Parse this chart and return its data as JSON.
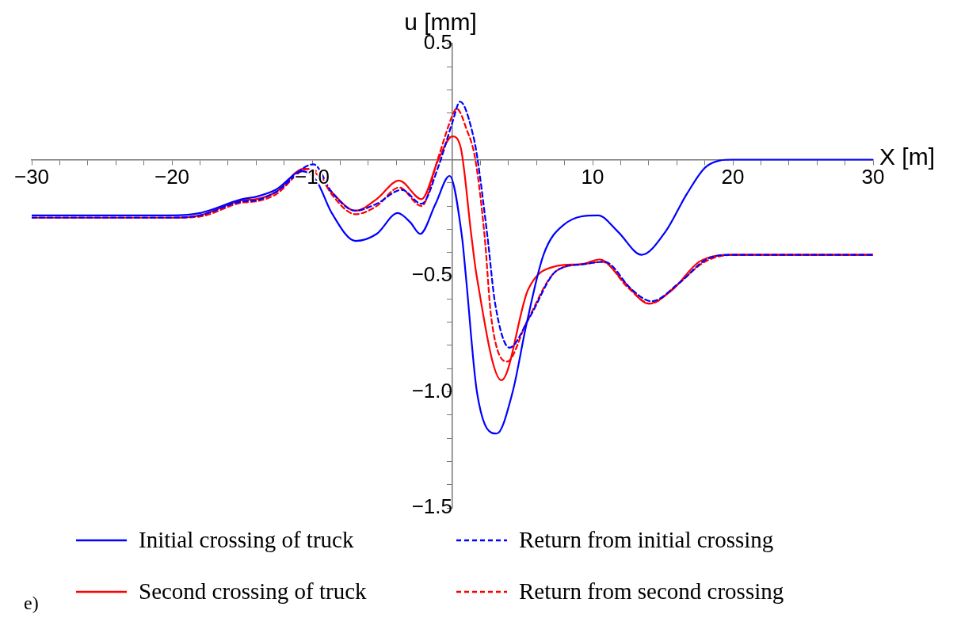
{
  "chart_data": {
    "type": "line",
    "xlabel": "X [m]",
    "ylabel": "u [mm]",
    "xlim": [
      -30,
      30
    ],
    "ylim": [
      -1.5,
      0.5
    ],
    "xticks": [
      {
        "value": -30,
        "label": "−30"
      },
      {
        "value": -28,
        "label": null
      },
      {
        "value": -26,
        "label": null
      },
      {
        "value": -24,
        "label": null
      },
      {
        "value": -22,
        "label": null
      },
      {
        "value": -20,
        "label": "−20"
      },
      {
        "value": -18,
        "label": null
      },
      {
        "value": -16,
        "label": null
      },
      {
        "value": -14,
        "label": null
      },
      {
        "value": -12,
        "label": null
      },
      {
        "value": -10,
        "label": "−10"
      },
      {
        "value": -8,
        "label": null
      },
      {
        "value": -6,
        "label": null
      },
      {
        "value": -4,
        "label": null
      },
      {
        "value": -2,
        "label": null
      },
      {
        "value": 2,
        "label": null
      },
      {
        "value": 4,
        "label": null
      },
      {
        "value": 6,
        "label": null
      },
      {
        "value": 8,
        "label": null
      },
      10,
      {
        "value": 12,
        "label": null
      },
      {
        "value": 14,
        "label": null
      },
      {
        "value": 16,
        "label": null
      },
      {
        "value": 18,
        "label": null
      },
      20,
      {
        "value": 22,
        "label": null
      },
      {
        "value": 24,
        "label": null
      },
      {
        "value": 26,
        "label": null
      },
      {
        "value": 28,
        "label": null
      },
      30
    ],
    "yticks": [
      {
        "value": -1.5,
        "label": "−1.5"
      },
      {
        "value": -1.4,
        "label": null
      },
      {
        "value": -1.3,
        "label": null
      },
      {
        "value": -1.2,
        "label": null
      },
      {
        "value": -1.1,
        "label": null
      },
      {
        "value": -1,
        "label": "−1.0"
      },
      {
        "value": -0.9,
        "label": null
      },
      {
        "value": -0.8,
        "label": null
      },
      {
        "value": -0.7,
        "label": null
      },
      {
        "value": -0.6,
        "label": null
      },
      {
        "value": -0.5,
        "label": "−0.5"
      },
      {
        "value": -0.4,
        "label": null
      },
      {
        "value": -0.3,
        "label": null
      },
      {
        "value": -0.2,
        "label": null
      },
      {
        "value": -0.1,
        "label": null
      },
      {
        "value": 0.1,
        "label": null
      },
      {
        "value": 0.2,
        "label": null
      },
      {
        "value": 0.3,
        "label": null
      },
      {
        "value": 0.4,
        "label": null
      },
      0.5
    ],
    "legend": "bottom",
    "grid": false,
    "marker": "none",
    "annotations": [
      "e)"
    ],
    "series": [
      {
        "name": "Initial crossing of truck",
        "color": "#0000ff",
        "line_style": "solid",
        "x": [
          -30,
          -20,
          -18,
          -15,
          -14,
          -12.6,
          -10.7,
          -9.7,
          -8.6,
          -6.9,
          -5.4,
          -3.9,
          -3,
          -2.3,
          -1.2,
          -0.2,
          0.68,
          0.96,
          1.75,
          3.16,
          4.3,
          5.28,
          6.5,
          7.95,
          10.4,
          11.8,
          13.5,
          15.2,
          16.7,
          18.1,
          20,
          30
        ],
        "values": [
          -0.24,
          -0.24,
          -0.23,
          -0.17,
          -0.16,
          -0.13,
          -0.05,
          -0.09,
          -0.23,
          -0.35,
          -0.32,
          -0.23,
          -0.27,
          -0.32,
          -0.19,
          -0.07,
          -0.33,
          -0.5,
          -1.0,
          -1.18,
          -1.0,
          -0.71,
          -0.41,
          -0.28,
          -0.24,
          -0.31,
          -0.41,
          -0.31,
          -0.15,
          -0.03,
          0,
          0
        ]
      },
      {
        "name": "Return from initial crossing",
        "color": "#0000ff",
        "line_style": "dashed",
        "x": [
          -30,
          -20,
          -18,
          -15,
          -14,
          -12.6,
          -9.9,
          -8.6,
          -6.9,
          -5.4,
          -3.6,
          -2.2,
          -1,
          0,
          0.55,
          1.5,
          1.8,
          2.5,
          3.05,
          4.07,
          5.5,
          7.4,
          9.4,
          10.85,
          12.8,
          14.2,
          16.2,
          18.1,
          20,
          30
        ],
        "values": [
          -0.25,
          -0.25,
          -0.24,
          -0.18,
          -0.175,
          -0.14,
          -0.02,
          -0.14,
          -0.22,
          -0.19,
          -0.13,
          -0.19,
          -0.03,
          0.16,
          0.25,
          0.1,
          0,
          -0.33,
          -0.62,
          -0.81,
          -0.68,
          -0.48,
          -0.45,
          -0.44,
          -0.56,
          -0.61,
          -0.53,
          -0.43,
          -0.41,
          -0.41
        ]
      },
      {
        "name": "Second crossing of truck",
        "color": "#ff0000",
        "line_style": "solid",
        "x": [
          -30,
          -20,
          -18,
          -15,
          -14,
          -12.6,
          -10.6,
          -9.9,
          -8.6,
          -6.9,
          -5.4,
          -3.8,
          -2.2,
          -1,
          0,
          0.6,
          1.36,
          1.73,
          3.5,
          5.4,
          7.3,
          9.2,
          10.5,
          12.3,
          14,
          15.7,
          17.6,
          20,
          30
        ],
        "values": [
          -0.25,
          -0.25,
          -0.24,
          -0.175,
          -0.17,
          -0.14,
          -0.04,
          -0.05,
          -0.14,
          -0.22,
          -0.17,
          -0.09,
          -0.17,
          0,
          0.1,
          0.05,
          -0.33,
          -0.5,
          -0.95,
          -0.56,
          -0.46,
          -0.45,
          -0.43,
          -0.53,
          -0.62,
          -0.56,
          -0.44,
          -0.41,
          -0.41
        ]
      },
      {
        "name": "Return from second crossing",
        "color": "#ff0000",
        "line_style": "dashed",
        "x": [
          -30,
          -20,
          -18,
          -15,
          -14,
          -12.6,
          -10.3,
          -9.5,
          -8.6,
          -6.9,
          -5.4,
          -3.8,
          -2.2,
          -1,
          0,
          0.3,
          1.02,
          1.64,
          2.3,
          2.77,
          3.9,
          5.3,
          7.4,
          9.4,
          10.7,
          12.5,
          14.1,
          16,
          18,
          20,
          30
        ],
        "values": [
          -0.25,
          -0.25,
          -0.245,
          -0.185,
          -0.18,
          -0.15,
          -0.04,
          -0.06,
          -0.15,
          -0.235,
          -0.2,
          -0.12,
          -0.2,
          0.01,
          0.19,
          0.22,
          0.13,
          0,
          -0.33,
          -0.68,
          -0.87,
          -0.7,
          -0.48,
          -0.45,
          -0.44,
          -0.55,
          -0.62,
          -0.54,
          -0.44,
          -0.41,
          -0.41
        ]
      }
    ]
  }
}
